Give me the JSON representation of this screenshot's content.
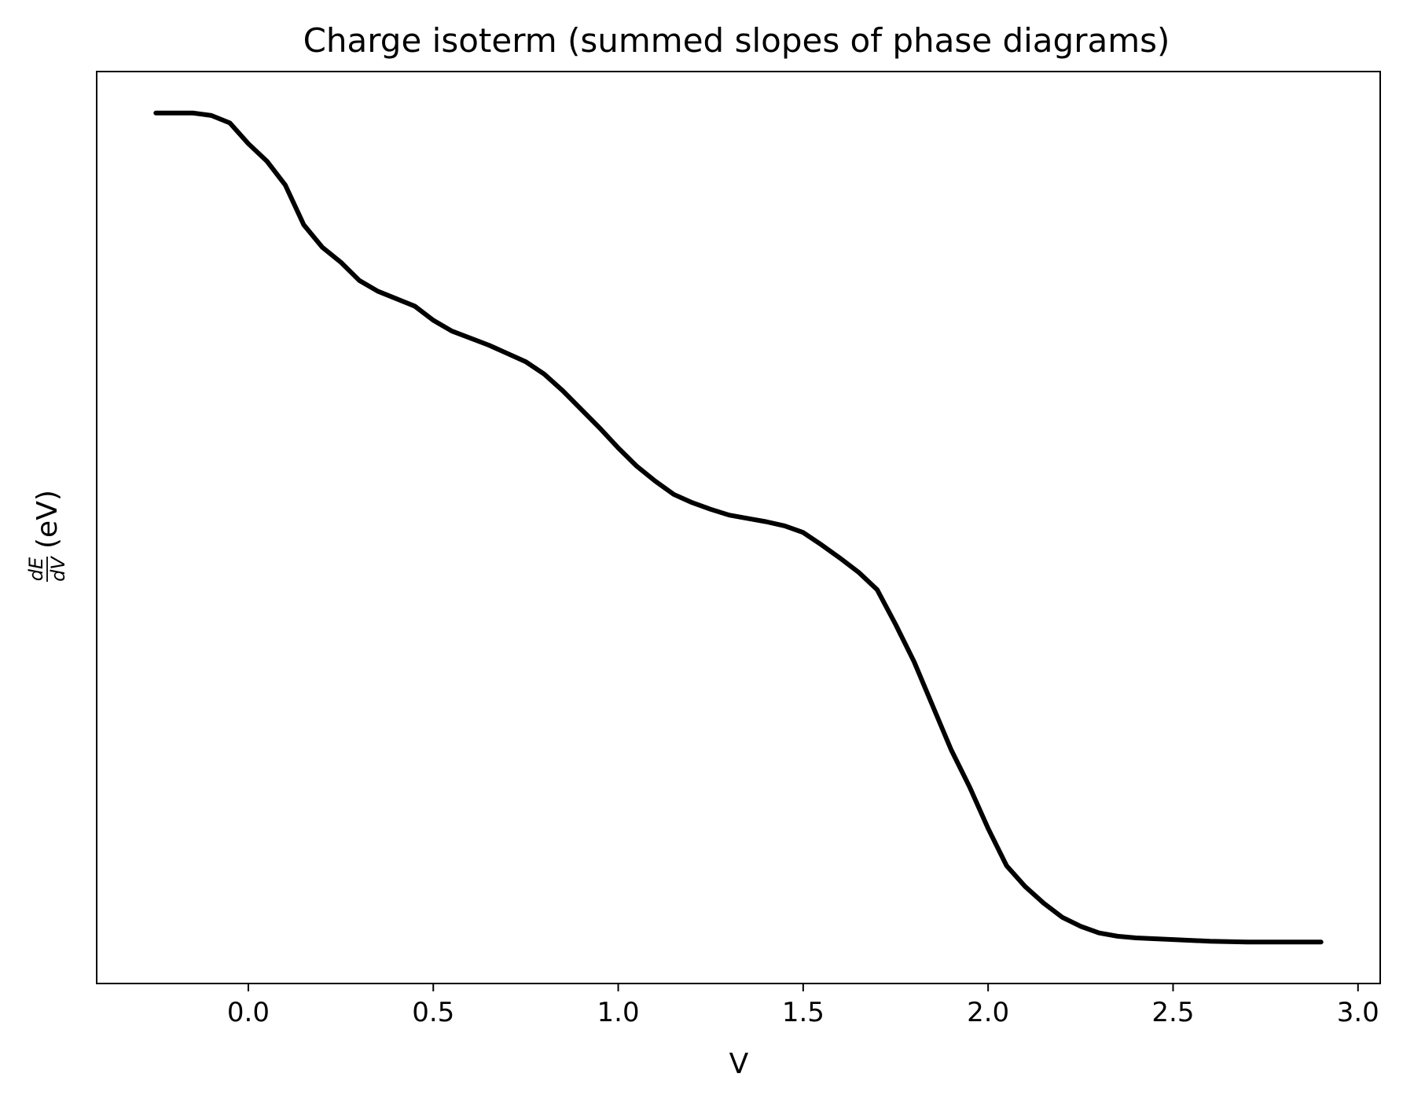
{
  "chart_data": {
    "type": "line",
    "title": "Charge isoterm (summed slopes of phase diagrams)",
    "xlabel": "V",
    "ylabel": {
      "numerator": "dE",
      "denominator": "dV",
      "unit": "(eV)"
    },
    "xlim": [
      -0.41,
      3.06
    ],
    "ylim": [
      -0.05,
      1.05
    ],
    "x_ticks": [
      0.0,
      0.5,
      1.0,
      1.5,
      2.0,
      2.5,
      3.0
    ],
    "x_tick_labels": [
      "0.0",
      "0.5",
      "1.0",
      "1.5",
      "2.0",
      "2.5",
      "3.0"
    ],
    "y_ticks_shown": false,
    "grid": false,
    "legend": "none",
    "line_color": "#000000",
    "series": [
      {
        "x": [
          -0.25,
          -0.15,
          -0.1,
          -0.05,
          0.0,
          0.05,
          0.1,
          0.15,
          0.2,
          0.25,
          0.3,
          0.35,
          0.45,
          0.5,
          0.55,
          0.65,
          0.75,
          0.8,
          0.85,
          0.95,
          1.0,
          1.05,
          1.1,
          1.15,
          1.2,
          1.25,
          1.3,
          1.35,
          1.4,
          1.45,
          1.5,
          1.55,
          1.6,
          1.65,
          1.7,
          1.75,
          1.8,
          1.85,
          1.9,
          1.95,
          2.0,
          2.05,
          2.1,
          2.15,
          2.2,
          2.25,
          2.3,
          2.35,
          2.4,
          2.5,
          2.6,
          2.7,
          2.8,
          2.9
        ],
        "y": [
          1.0,
          1.0,
          0.997,
          0.988,
          0.963,
          0.942,
          0.913,
          0.865,
          0.838,
          0.82,
          0.798,
          0.785,
          0.767,
          0.75,
          0.737,
          0.72,
          0.7,
          0.685,
          0.665,
          0.62,
          0.596,
          0.574,
          0.556,
          0.54,
          0.53,
          0.522,
          0.515,
          0.511,
          0.507,
          0.502,
          0.494,
          0.479,
          0.463,
          0.446,
          0.425,
          0.383,
          0.338,
          0.285,
          0.232,
          0.187,
          0.137,
          0.092,
          0.067,
          0.047,
          0.03,
          0.019,
          0.011,
          0.007,
          0.005,
          0.003,
          0.001,
          0.0,
          0.0,
          0.0
        ]
      }
    ]
  }
}
